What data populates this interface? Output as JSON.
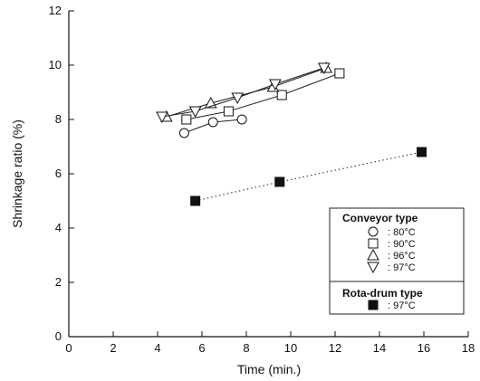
{
  "chart_data": {
    "type": "line",
    "xlabel": "Time (min.)",
    "ylabel": "Shrinkage ratio (%)",
    "xlim": [
      0,
      18
    ],
    "ylim": [
      0,
      12
    ],
    "xticks": [
      0,
      2,
      4,
      6,
      8,
      10,
      12,
      14,
      16,
      18
    ],
    "yticks": [
      0,
      2,
      4,
      6,
      8,
      10,
      12
    ],
    "grid": false,
    "legend_placement": "bottom-right",
    "legend_groups": [
      {
        "title": "Conveyor type",
        "series_indexes": [
          0,
          1,
          2,
          3
        ]
      },
      {
        "title": "Rota-drum type",
        "series_indexes": [
          4
        ]
      }
    ],
    "series": [
      {
        "group": "Conveyor type",
        "name": "80°C",
        "legend_label": ": 80°C",
        "marker": "circle",
        "line": "solid",
        "x": [
          5.2,
          6.5,
          7.8
        ],
        "y": [
          7.5,
          7.9,
          8.0
        ]
      },
      {
        "group": "Conveyor type",
        "name": "90°C",
        "legend_label": ": 90°C",
        "marker": "square",
        "line": "solid",
        "x": [
          5.3,
          7.2,
          9.6,
          12.2
        ],
        "y": [
          8.0,
          8.3,
          8.9,
          9.7
        ]
      },
      {
        "group": "Conveyor type",
        "name": "96°C",
        "legend_label": ": 96°C",
        "marker": "triangle-up",
        "line": "solid",
        "x": [
          4.4,
          6.4,
          9.2,
          11.6
        ],
        "y": [
          8.1,
          8.6,
          9.2,
          9.9
        ]
      },
      {
        "group": "Conveyor type",
        "name": "97°C",
        "legend_label": ": 97°C",
        "marker": "triangle-down",
        "line": "solid",
        "x": [
          4.2,
          5.7,
          7.6,
          9.3,
          11.5
        ],
        "y": [
          8.1,
          8.3,
          8.8,
          9.3,
          9.9
        ]
      },
      {
        "group": "Rota-drum type",
        "name": "97°C",
        "legend_label": ": 97°C",
        "marker": "filled-square",
        "line": "dotted",
        "x": [
          5.7,
          9.5,
          15.9
        ],
        "y": [
          5.0,
          5.7,
          6.8
        ]
      }
    ]
  }
}
